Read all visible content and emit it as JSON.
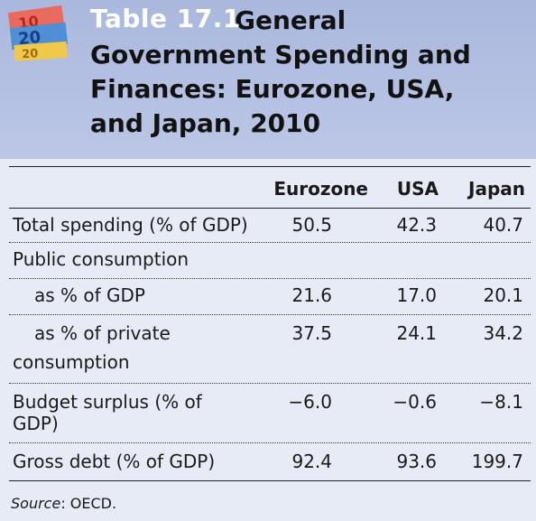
{
  "header": {
    "table_number": "Table 17.1",
    "title": "General Government Spending and Finances: Eurozone, USA, and Japan, 2010"
  },
  "table": {
    "columns": [
      "Eurozone",
      "USA",
      "Japan"
    ],
    "rows": [
      {
        "label": "Total spending (% of GDP)",
        "values": [
          "50.5",
          "42.3",
          "40.7"
        ]
      },
      {
        "label": "Public consumption",
        "values": [
          "",
          "",
          ""
        ]
      },
      {
        "label": "as % of GDP",
        "values": [
          "21.6",
          "17.0",
          "20.1"
        ]
      },
      {
        "label_lines": [
          "as % of private",
          "consumption"
        ],
        "values": [
          "37.5",
          "24.1",
          "34.2"
        ]
      },
      {
        "label_lines": [
          "Budget surplus (% of",
          "GDP)"
        ],
        "values": [
          "−6.0",
          "−0.6",
          "−8.1"
        ]
      },
      {
        "label": "Gross debt (% of GDP)",
        "values": [
          "92.4",
          "93.6",
          "199.7"
        ]
      }
    ]
  },
  "source": {
    "label": "Source",
    "text": ": OECD."
  },
  "colors": {
    "header_bg": "#aab8de",
    "table_bg": "#e6ebf6",
    "title_number": "#ffffff"
  }
}
